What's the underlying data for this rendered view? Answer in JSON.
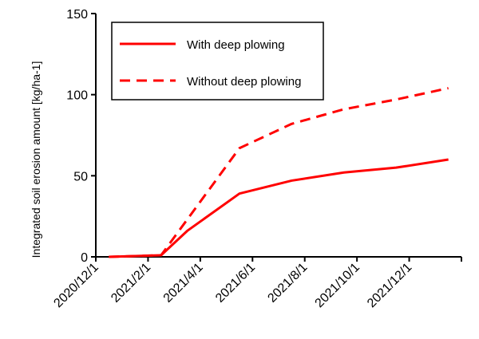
{
  "chart_data": {
    "type": "line",
    "title": "",
    "xlabel": "",
    "ylabel": "Integrated soil erosion amount [kg/ha-1]",
    "ylim": [
      0,
      150
    ],
    "yticks": [
      0,
      50,
      100,
      150
    ],
    "xlim_months_from_2020_12_1": [
      0,
      14
    ],
    "xticks": [
      {
        "label": "2020/12/1",
        "m": 0
      },
      {
        "label": "2021/2/1",
        "m": 2
      },
      {
        "label": "2021/4/1",
        "m": 4
      },
      {
        "label": "2021/6/1",
        "m": 6
      },
      {
        "label": "2021/8/1",
        "m": 8
      },
      {
        "label": "2021/10/1",
        "m": 10
      },
      {
        "label": "2021/12/1",
        "m": 12
      }
    ],
    "legend_position": "top-left",
    "series": [
      {
        "name": "With deep plowing",
        "style": "solid",
        "color": "#ff0000",
        "x": [
          0.5,
          2.5,
          3.5,
          5.5,
          7.5,
          9.5,
          11.5,
          13.5
        ],
        "y": [
          0,
          1,
          16,
          39,
          47,
          52,
          55,
          60
        ]
      },
      {
        "name": "Without deep plowing",
        "style": "dashed",
        "color": "#ff0000",
        "x": [
          0.5,
          2.5,
          5.5,
          7.5,
          9.5,
          11.5,
          13.5
        ],
        "y": [
          0,
          1,
          67,
          82,
          91,
          97,
          104
        ]
      }
    ]
  }
}
